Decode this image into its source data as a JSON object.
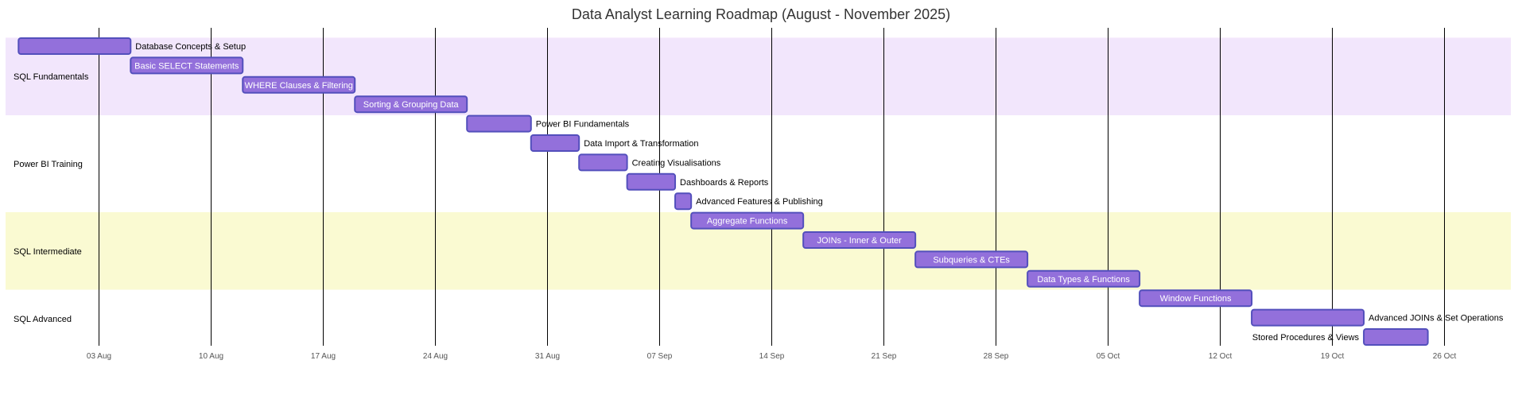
{
  "chart_data": {
    "type": "gantt",
    "title": "Data Analyst Learning Roadmap (August - November 2025)",
    "colors": {
      "task_fill": "#9370DB",
      "task_stroke": "#534FBC",
      "section_band_1": "#F2E6FC",
      "section_band_2": "#FAFAD2",
      "label_inside": "#FFFFFF",
      "label_outside": "#000000"
    },
    "x_ticks": [
      "03 Aug",
      "10 Aug",
      "17 Aug",
      "24 Aug",
      "31 Aug",
      "07 Sep",
      "14 Sep",
      "21 Sep",
      "28 Sep",
      "05 Oct",
      "12 Oct",
      "19 Oct",
      "26 Oct"
    ],
    "x_tick_dates": [
      "2025-08-03",
      "2025-08-10",
      "2025-08-17",
      "2025-08-24",
      "2025-08-31",
      "2025-09-07",
      "2025-09-14",
      "2025-09-21",
      "2025-09-28",
      "2025-10-05",
      "2025-10-12",
      "2025-10-19",
      "2025-10-26"
    ],
    "sections": [
      {
        "name": "SQL Fundamentals",
        "tasks": [
          {
            "name": "Database Concepts & Setup",
            "start": "2025-07-29",
            "end": "2025-08-05"
          },
          {
            "name": "Basic SELECT Statements",
            "start": "2025-08-05",
            "end": "2025-08-12"
          },
          {
            "name": "WHERE Clauses & Filtering",
            "start": "2025-08-12",
            "end": "2025-08-19"
          },
          {
            "name": "Sorting & Grouping Data",
            "start": "2025-08-19",
            "end": "2025-08-26"
          }
        ]
      },
      {
        "name": "Power BI Training",
        "tasks": [
          {
            "name": "Power BI Fundamentals",
            "start": "2025-08-26",
            "end": "2025-08-30"
          },
          {
            "name": "Data Import & Transformation",
            "start": "2025-08-30",
            "end": "2025-09-02"
          },
          {
            "name": "Creating Visualisations",
            "start": "2025-09-02",
            "end": "2025-09-05"
          },
          {
            "name": "Dashboards & Reports",
            "start": "2025-09-05",
            "end": "2025-09-08"
          },
          {
            "name": "Advanced Features & Publishing",
            "start": "2025-09-08",
            "end": "2025-09-09"
          }
        ]
      },
      {
        "name": "SQL Intermediate",
        "tasks": [
          {
            "name": "Aggregate Functions",
            "start": "2025-09-09",
            "end": "2025-09-16"
          },
          {
            "name": "JOINs - Inner & Outer",
            "start": "2025-09-16",
            "end": "2025-09-23"
          },
          {
            "name": "Subqueries & CTEs",
            "start": "2025-09-23",
            "end": "2025-09-30"
          },
          {
            "name": "Data Types & Functions",
            "start": "2025-09-30",
            "end": "2025-10-07"
          }
        ]
      },
      {
        "name": "SQL Advanced",
        "tasks": [
          {
            "name": "Window Functions",
            "start": "2025-10-07",
            "end": "2025-10-14"
          },
          {
            "name": "Advanced JOINs & Set Operations",
            "start": "2025-10-14",
            "end": "2025-10-21"
          },
          {
            "name": "Stored Procedures & Views",
            "start": "2025-10-21",
            "end": "2025-10-25"
          }
        ]
      }
    ]
  }
}
